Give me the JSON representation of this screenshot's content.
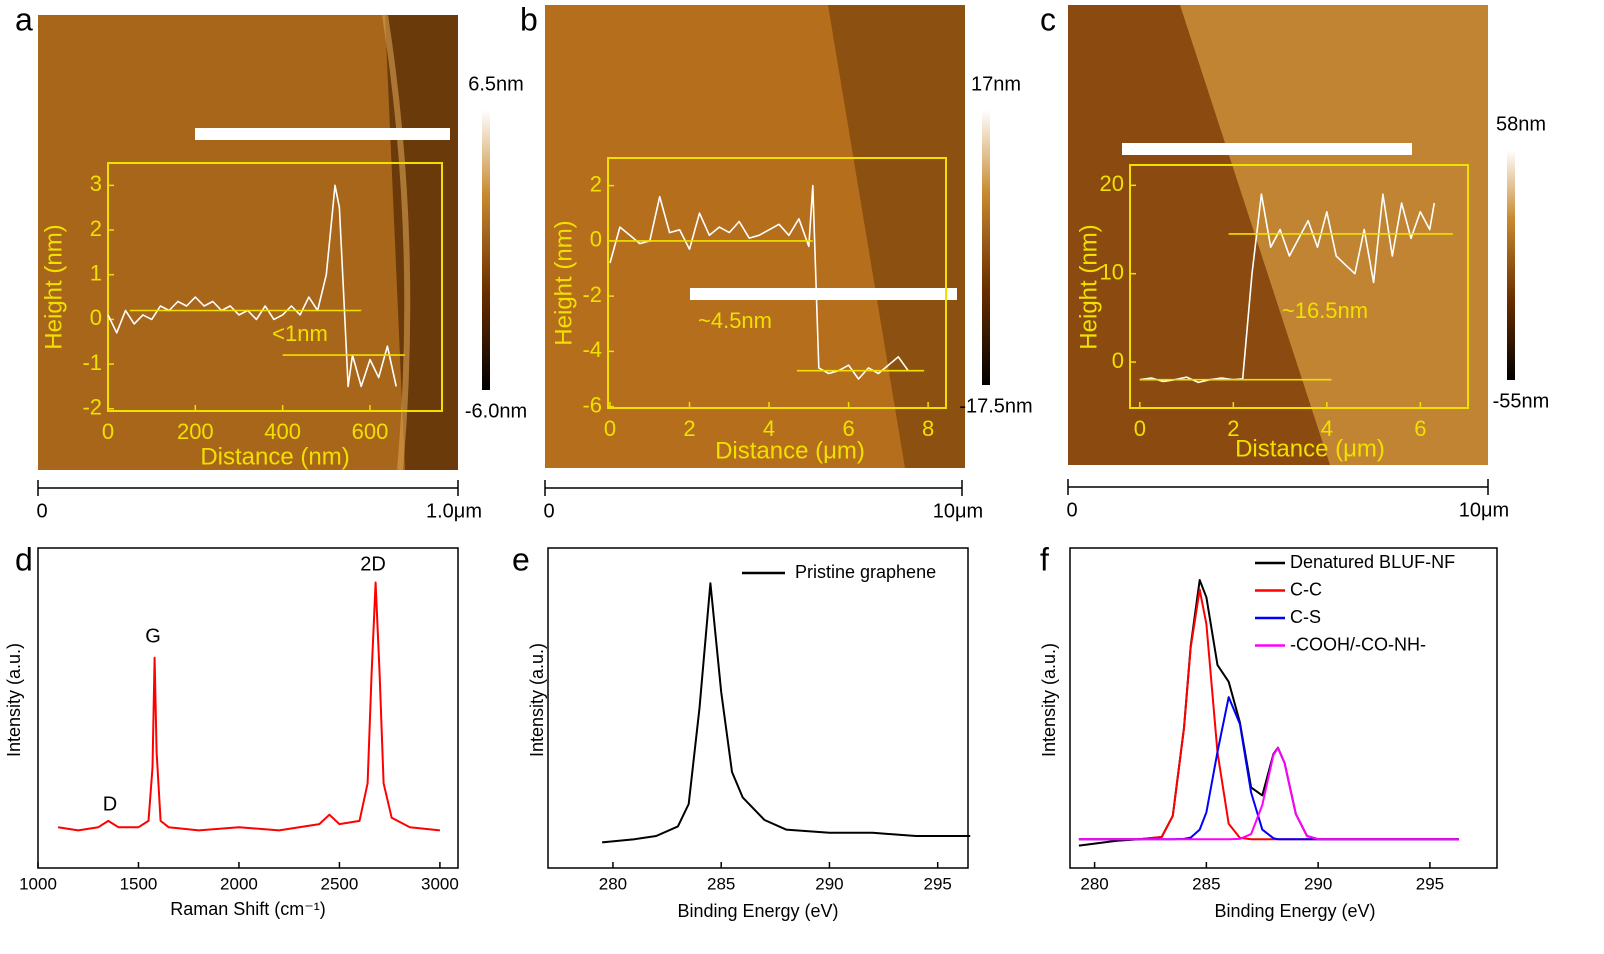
{
  "chart_data": [
    {
      "type": "line",
      "panel": "a",
      "xlabel": "Distance (nm)",
      "ylabel": "Height (nm)",
      "xlim": [
        0,
        765
      ],
      "ylim": [
        -2.05,
        3.5
      ],
      "xticks": [
        0,
        200,
        400,
        600
      ],
      "yticks": [
        -2,
        -1,
        0,
        1,
        2,
        3
      ],
      "series": [
        {
          "color": "#ffffff",
          "x": [
            0,
            20,
            40,
            60,
            80,
            100,
            120,
            140,
            160,
            180,
            200,
            220,
            240,
            260,
            280,
            300,
            320,
            340,
            360,
            380,
            400,
            420,
            440,
            460,
            480,
            500,
            510,
            520,
            530,
            540,
            550,
            560,
            580,
            600,
            620,
            640,
            660
          ],
          "values": [
            0.1,
            -0.3,
            0.2,
            -0.1,
            0.1,
            0.0,
            0.3,
            0.2,
            0.4,
            0.3,
            0.5,
            0.3,
            0.4,
            0.2,
            0.3,
            0.1,
            0.2,
            0.0,
            0.3,
            0.0,
            0.1,
            0.3,
            0.1,
            0.5,
            0.2,
            1.0,
            2.0,
            3.0,
            2.5,
            0.5,
            -1.5,
            -0.8,
            -1.5,
            -0.9,
            -1.3,
            -0.6,
            -1.5
          ]
        },
        {
          "color": "#f0e000",
          "x": [
            50,
            580
          ],
          "values": [
            0.2,
            0.2
          ]
        },
        {
          "color": "#f0e000",
          "x": [
            400,
            680
          ],
          "values": [
            -0.8,
            -0.8
          ]
        }
      ],
      "annotations": [
        "<1nm"
      ],
      "colorbar": {
        "lim": [
          -6.0,
          6.5
        ],
        "ticks": [
          {
            "value": 6.5,
            "label": "6.5nm"
          },
          {
            "value": -6.0,
            "label": "-6.0nm"
          }
        ]
      },
      "scalebar": {
        "lim": [
          0,
          1.0
        ],
        "ticks": [
          0,
          {
            "value": 1.0,
            "label": "1.0μm"
          }
        ]
      }
    },
    {
      "type": "line",
      "panel": "b",
      "xlabel": "Distance (μm)",
      "ylabel": "Height (nm)",
      "xlim": [
        -0.05,
        8.45
      ],
      "ylim": [
        -6.05,
        3
      ],
      "xticks": [
        0,
        2,
        4,
        6,
        8
      ],
      "yticks": [
        -6,
        -4,
        -2,
        0,
        2
      ],
      "series": [
        {
          "color": "#ffffff",
          "x": [
            0,
            0.25,
            0.5,
            0.75,
            1,
            1.25,
            1.5,
            1.75,
            2,
            2.25,
            2.5,
            2.75,
            3,
            3.25,
            3.5,
            3.75,
            4,
            4.25,
            4.5,
            4.75,
            5,
            5.1,
            5.25,
            5.5,
            5.75,
            6,
            6.25,
            6.5,
            6.75,
            7,
            7.25,
            7.5
          ],
          "values": [
            -0.8,
            0.5,
            0.2,
            -0.1,
            0.0,
            1.6,
            0.3,
            0.4,
            -0.3,
            1.0,
            0.2,
            0.5,
            0.3,
            0.7,
            0.1,
            0.2,
            0.4,
            0.6,
            0.2,
            0.8,
            -0.2,
            2.0,
            -4.6,
            -4.8,
            -4.7,
            -4.5,
            -5.0,
            -4.6,
            -4.8,
            -4.5,
            -4.2,
            -4.7
          ]
        },
        {
          "color": "#f0e000",
          "x": [
            0,
            5.1
          ],
          "values": [
            0,
            0
          ]
        },
        {
          "color": "#f0e000",
          "x": [
            4.7,
            7.9
          ],
          "values": [
            -4.7,
            -4.7
          ]
        }
      ],
      "annotations": [
        "~4.5nm"
      ],
      "colorbar": {
        "lim": [
          -17.5,
          17
        ],
        "ticks": [
          {
            "value": 17,
            "label": "17nm"
          },
          {
            "value": -17.5,
            "label": "-17.5nm"
          }
        ]
      },
      "scalebar": {
        "lim": [
          0,
          10
        ],
        "ticks": [
          0,
          {
            "value": 10,
            "label": "10μm"
          }
        ]
      }
    },
    {
      "type": "line",
      "panel": "c",
      "xlabel": "Distance (μm)",
      "ylabel": "Height (nm)",
      "xlim": [
        -0.21,
        7.02
      ],
      "ylim": [
        -5.2,
        22.3
      ],
      "xticks": [
        0,
        2,
        4,
        6
      ],
      "yticks": [
        0,
        10,
        20
      ],
      "series": [
        {
          "color": "#ffffff",
          "x": [
            0,
            0.25,
            0.5,
            0.75,
            1,
            1.25,
            1.5,
            1.75,
            2,
            2.2,
            2.4,
            2.6,
            2.8,
            3,
            3.2,
            3.4,
            3.6,
            3.8,
            4,
            4.2,
            4.4,
            4.6,
            4.8,
            5,
            5.2,
            5.4,
            5.6,
            5.8,
            6,
            6.2,
            6.3
          ],
          "values": [
            -2,
            -1.8,
            -2.2,
            -2,
            -1.7,
            -2.3,
            -2,
            -1.8,
            -2,
            -1.9,
            10,
            19,
            13,
            15,
            12,
            14,
            16,
            13,
            17,
            12,
            11,
            10,
            15,
            9,
            19,
            12,
            18,
            14,
            17,
            15,
            18
          ]
        },
        {
          "color": "#f0e000",
          "x": [
            1.9,
            6.7
          ],
          "values": [
            14.5,
            14.5
          ]
        },
        {
          "color": "#f0e000",
          "x": [
            0,
            4.1
          ],
          "values": [
            -2,
            -2
          ]
        }
      ],
      "annotations": [
        "~16.5nm"
      ],
      "colorbar": {
        "lim": [
          -55,
          58
        ],
        "ticks": [
          {
            "value": 58,
            "label": "58nm"
          },
          {
            "value": -55,
            "label": "-55nm"
          }
        ]
      },
      "scalebar": {
        "lim": [
          0,
          10
        ],
        "ticks": [
          0,
          {
            "value": 10,
            "label": "10μm"
          }
        ]
      }
    },
    {
      "type": "line",
      "panel": "d",
      "xlabel": "Raman Shift (cm⁻¹)",
      "ylabel": "Intensity (a.u.)",
      "xlim": [
        1000,
        3090
      ],
      "ylim": [
        -0.12,
        0.9
      ],
      "xticks": [
        1000,
        1500,
        2000,
        2500,
        3000
      ],
      "x": [
        1100,
        1200,
        1300,
        1350,
        1400,
        1500,
        1550,
        1570,
        1580,
        1590,
        1610,
        1650,
        1800,
        2000,
        2200,
        2400,
        2450,
        2500,
        2600,
        2640,
        2660,
        2680,
        2700,
        2720,
        2760,
        2850,
        3000
      ],
      "series": [
        {
          "color": "#ff0000",
          "values": [
            0.01,
            0.0,
            0.01,
            0.03,
            0.01,
            0.01,
            0.03,
            0.2,
            0.55,
            0.25,
            0.03,
            0.01,
            0.0,
            0.01,
            0.0,
            0.02,
            0.05,
            0.02,
            0.03,
            0.15,
            0.5,
            0.79,
            0.5,
            0.15,
            0.04,
            0.01,
            0.0
          ]
        }
      ],
      "annotations": [
        "D",
        "G",
        "2D"
      ]
    },
    {
      "type": "line",
      "panel": "e",
      "xlabel": "Binding Energy (eV)",
      "ylabel": "Intensity (a.u.)",
      "xlim": [
        277,
        296.4
      ],
      "ylim": [
        0,
        1
      ],
      "xticks": [
        280,
        285,
        290,
        295
      ],
      "x": [
        279.5,
        281,
        282,
        283,
        283.5,
        284,
        284.5,
        285,
        285.5,
        286,
        287,
        288,
        290,
        292,
        294,
        296.5
      ],
      "series": [
        {
          "name": "Pristine graphene",
          "color": "#000000",
          "values": [
            0.08,
            0.09,
            0.1,
            0.13,
            0.2,
            0.5,
            0.89,
            0.55,
            0.3,
            0.22,
            0.15,
            0.12,
            0.11,
            0.11,
            0.1,
            0.1
          ]
        }
      ]
    },
    {
      "type": "line",
      "panel": "f",
      "xlabel": "Binding Energy (eV)",
      "ylabel": "Intensity (a.u.)",
      "xlim": [
        278.9,
        298
      ],
      "ylim": [
        0,
        1
      ],
      "xticks": [
        280,
        285,
        290,
        295
      ],
      "x": [
        279.3,
        281,
        282,
        283,
        283.5,
        284,
        284.3,
        284.7,
        285,
        285.5,
        286,
        286.5,
        287,
        287.5,
        288,
        288.2,
        288.5,
        289,
        289.5,
        290,
        291,
        293,
        296.3
      ],
      "series": [
        {
          "name": "Denatured BLUF-NF",
          "color": "#000000",
          "values": [
            0.07,
            0.085,
            0.09,
            0.097,
            0.163,
            0.438,
            0.694,
            0.9,
            0.846,
            0.634,
            0.582,
            0.455,
            0.252,
            0.227,
            0.356,
            0.376,
            0.328,
            0.169,
            0.1,
            0.09,
            0.09,
            0.09,
            0.09
          ]
        },
        {
          "name": "C-C",
          "color": "#ff0000",
          "values": [
            0.09,
            0.09,
            0.09,
            0.097,
            0.163,
            0.437,
            0.689,
            0.87,
            0.762,
            0.361,
            0.138,
            0.094,
            0.09,
            0.09,
            0.09,
            0.09,
            0.09,
            0.09,
            0.09,
            0.09,
            0.09,
            0.09,
            0.09
          ]
        },
        {
          "name": "C-S",
          "color": "#0000ff",
          "values": [
            0.09,
            0.09,
            0.09,
            0.09,
            0.09,
            0.091,
            0.095,
            0.12,
            0.174,
            0.363,
            0.534,
            0.45,
            0.236,
            0.12,
            0.093,
            0.09,
            0.09,
            0.09,
            0.09,
            0.09,
            0.09,
            0.09,
            0.09
          ]
        },
        {
          "name": "-COOH/-CO-NH-",
          "color": "#ff00ff",
          "values": [
            0.09,
            0.09,
            0.09,
            0.09,
            0.09,
            0.09,
            0.09,
            0.09,
            0.09,
            0.09,
            0.09,
            0.091,
            0.106,
            0.197,
            0.353,
            0.375,
            0.328,
            0.169,
            0.1,
            0.09,
            0.09,
            0.09,
            0.09
          ]
        }
      ]
    }
  ]
}
